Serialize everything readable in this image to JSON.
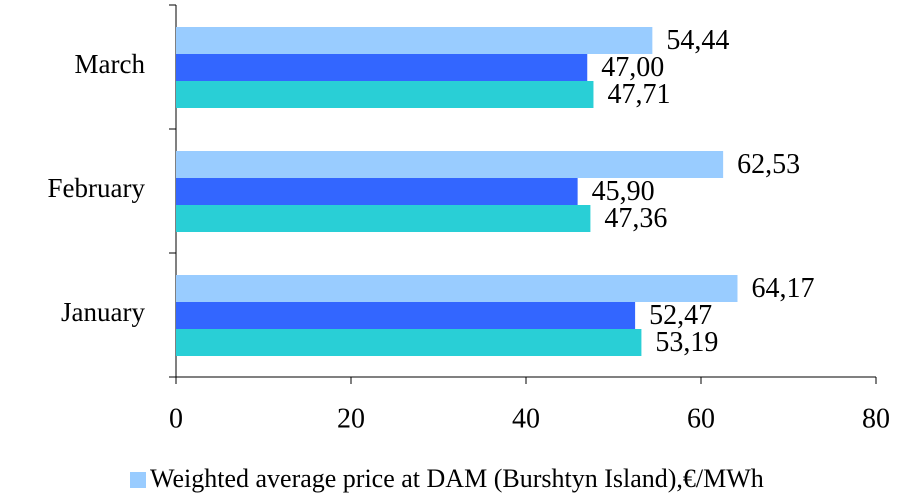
{
  "chart_data": {
    "type": "hbar",
    "categories": [
      "January",
      "February",
      "March"
    ],
    "series": [
      {
        "name": "Weighted average price at DAM (Burshtyn Island),€/MWh",
        "color": "#99ccff",
        "values": [
          64.17,
          62.53,
          54.44
        ],
        "value_labels": [
          "64,17",
          "62,53",
          "54,44"
        ]
      },
      {
        "color": "#3366ff",
        "values": [
          52.47,
          45.9,
          47.0
        ],
        "value_labels": [
          "52,47",
          "45,90",
          "47,00"
        ]
      },
      {
        "color": "#29cfd6",
        "values": [
          53.19,
          47.36,
          47.71
        ],
        "value_labels": [
          "53,19",
          "47,36",
          "47,71"
        ]
      }
    ],
    "xlim": [
      0,
      80
    ],
    "xticks": [
      0,
      20,
      40,
      60,
      80
    ],
    "legend": "bottom"
  }
}
